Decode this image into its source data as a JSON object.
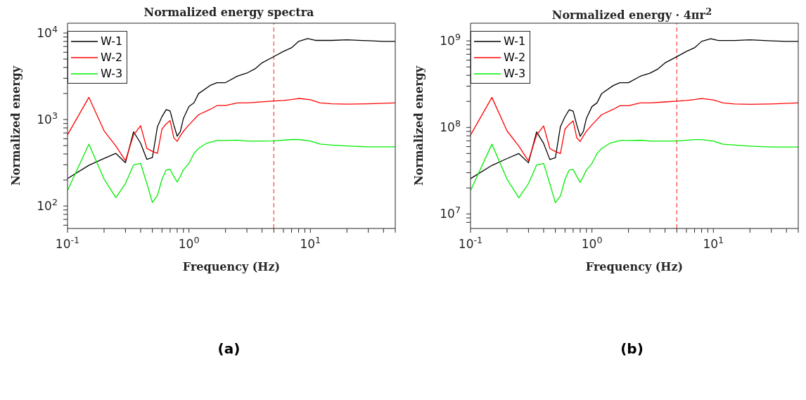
{
  "chart_data": [
    {
      "type": "line",
      "title": "Normalized energy spectra",
      "xlabel": "Frequency (Hz)",
      "ylabel": "Normalized energy",
      "log": "xy",
      "grid": false,
      "legend": "top left",
      "marker": "none",
      "line_style": "solid",
      "xlim": [
        0.1,
        50
      ],
      "ylim": [
        55,
        13000
      ],
      "xticks": [
        {
          "value": 0.1,
          "label": "10$^{-1}$"
        },
        {
          "value": 0.2,
          "label": null
        },
        {
          "value": 0.3,
          "label": null
        },
        {
          "value": 0.4,
          "label": null
        },
        {
          "value": 0.5,
          "label": null
        },
        {
          "value": 0.6,
          "label": null
        },
        {
          "value": 0.7,
          "label": null
        },
        {
          "value": 0.8,
          "label": null
        },
        {
          "value": 0.9,
          "label": null
        },
        {
          "value": 1,
          "label": "10$^{0}$"
        },
        {
          "value": 2,
          "label": null
        },
        {
          "value": 3,
          "label": null
        },
        {
          "value": 4,
          "label": null
        },
        {
          "value": 5,
          "label": null
        },
        {
          "value": 6,
          "label": null
        },
        {
          "value": 7,
          "label": null
        },
        {
          "value": 8,
          "label": null
        },
        {
          "value": 9,
          "label": null
        },
        {
          "value": 10,
          "label": "10$^{1}$"
        },
        {
          "value": 20,
          "label": null
        },
        {
          "value": 30,
          "label": null
        },
        {
          "value": 40,
          "label": null
        },
        {
          "value": 50,
          "label": null
        }
      ],
      "yticks": [
        {
          "value": 60,
          "label": null
        },
        {
          "value": 70,
          "label": null
        },
        {
          "value": 80,
          "label": null
        },
        {
          "value": 90,
          "label": null
        },
        {
          "value": 100,
          "label": "10$^{2}$"
        },
        {
          "value": 200,
          "label": null
        },
        {
          "value": 300,
          "label": null
        },
        {
          "value": 400,
          "label": null
        },
        {
          "value": 500,
          "label": null
        },
        {
          "value": 600,
          "label": null
        },
        {
          "value": 700,
          "label": null
        },
        {
          "value": 800,
          "label": null
        },
        {
          "value": 900,
          "label": null
        },
        {
          "value": 1000,
          "label": "10$^{3}$"
        },
        {
          "value": 2000,
          "label": null
        },
        {
          "value": 3000,
          "label": null
        },
        {
          "value": 4000,
          "label": null
        },
        {
          "value": 5000,
          "label": null
        },
        {
          "value": 6000,
          "label": null
        },
        {
          "value": 7000,
          "label": null
        },
        {
          "value": 8000,
          "label": null
        },
        {
          "value": 9000,
          "label": null
        },
        {
          "value": 10000,
          "label": "10$^{4}$"
        }
      ],
      "ref_lines": [
        {
          "axis": "x",
          "value": 5,
          "color": "#ff4040",
          "line_style": "dashed"
        }
      ],
      "annotations": [
        "(a)"
      ],
      "series": [
        {
          "name": "W-1",
          "color": "#000000",
          "x": [
            0.1,
            0.15,
            0.2,
            0.25,
            0.3,
            0.35,
            0.4,
            0.45,
            0.5,
            0.55,
            0.6,
            0.65,
            0.7,
            0.75,
            0.8,
            0.85,
            0.9,
            1,
            1.1,
            1.2,
            1.5,
            1.7,
            2,
            2.5,
            3,
            3.5,
            4,
            5,
            6,
            7,
            8,
            9.5,
            11,
            15,
            20,
            30,
            40,
            50
          ],
          "values": [
            208,
            296,
            355,
            406,
            317,
            721,
            532,
            346,
            363,
            826,
            1082,
            1303,
            1254,
            867,
            641,
            731,
            1030,
            1416,
            1560,
            1995,
            2483,
            2672,
            2672,
            3170,
            3443,
            3855,
            4530,
            5345,
            6135,
            6764,
            8020,
            8630,
            8220,
            8220,
            8340,
            8150,
            8020,
            8020
          ]
        },
        {
          "name": "W-2",
          "color": "#ff0000",
          "x": [
            0.1,
            0.15,
            0.2,
            0.25,
            0.3,
            0.35,
            0.4,
            0.45,
            0.5,
            0.55,
            0.6,
            0.65,
            0.7,
            0.75,
            0.8,
            0.85,
            0.9,
            1,
            1.2,
            1.5,
            1.7,
            2,
            2.5,
            3,
            4,
            5,
            6,
            7,
            8,
            10,
            12,
            15,
            20,
            30,
            50
          ],
          "values": [
            664,
            1807,
            741,
            495,
            334,
            664,
            848,
            464,
            428,
            406,
            780,
            890,
            971,
            616,
            559,
            648,
            731,
            867,
            1135,
            1314,
            1449,
            1449,
            1560,
            1560,
            1600,
            1638,
            1663,
            1704,
            1754,
            1693,
            1560,
            1523,
            1506,
            1523,
            1560
          ]
        },
        {
          "name": "W-3",
          "color": "#00ee00",
          "x": [
            0.1,
            0.15,
            0.2,
            0.25,
            0.3,
            0.35,
            0.4,
            0.45,
            0.5,
            0.55,
            0.6,
            0.65,
            0.7,
            0.75,
            0.8,
            0.85,
            0.9,
            1,
            1.1,
            1.2,
            1.4,
            1.7,
            2,
            2.5,
            3,
            4,
            5,
            7,
            8,
            10,
            12,
            15,
            20,
            30,
            50
          ],
          "values": [
            151,
            520,
            205,
            125,
            182,
            299,
            311,
            182,
            110,
            132,
            205,
            262,
            265,
            221,
            189,
            221,
            262,
            311,
            406,
            464,
            532,
            573,
            573,
            578,
            565,
            565,
            567,
            587,
            587,
            565,
            520,
            507,
            495,
            483,
            483
          ]
        }
      ]
    },
    {
      "type": "line",
      "title": "Normalized energy · 4πr$^{2}$",
      "xlabel": "Frequency (Hz)",
      "ylabel": "Normalized energy",
      "log": "xy",
      "grid": false,
      "legend": "top left",
      "marker": "none",
      "line_style": "solid",
      "xlim": [
        0.1,
        50
      ],
      "ylim": [
        6800000,
        1600000000
      ],
      "xticks": [
        {
          "value": 0.1,
          "label": "10$^{-1}$"
        },
        {
          "value": 0.2,
          "label": null
        },
        {
          "value": 0.3,
          "label": null
        },
        {
          "value": 0.4,
          "label": null
        },
        {
          "value": 0.5,
          "label": null
        },
        {
          "value": 0.6,
          "label": null
        },
        {
          "value": 0.7,
          "label": null
        },
        {
          "value": 0.8,
          "label": null
        },
        {
          "value": 0.9,
          "label": null
        },
        {
          "value": 1,
          "label": "10$^{0}$"
        },
        {
          "value": 2,
          "label": null
        },
        {
          "value": 3,
          "label": null
        },
        {
          "value": 4,
          "label": null
        },
        {
          "value": 5,
          "label": null
        },
        {
          "value": 6,
          "label": null
        },
        {
          "value": 7,
          "label": null
        },
        {
          "value": 8,
          "label": null
        },
        {
          "value": 9,
          "label": null
        },
        {
          "value": 10,
          "label": "10$^{1}$"
        },
        {
          "value": 20,
          "label": null
        },
        {
          "value": 30,
          "label": null
        },
        {
          "value": 40,
          "label": null
        },
        {
          "value": 50,
          "label": null
        }
      ],
      "yticks": [
        {
          "value": 8000000,
          "label": null
        },
        {
          "value": 9000000,
          "label": null
        },
        {
          "value": 10000000,
          "label": "10$^{7}$"
        },
        {
          "value": 20000000,
          "label": null
        },
        {
          "value": 30000000,
          "label": null
        },
        {
          "value": 40000000,
          "label": null
        },
        {
          "value": 50000000,
          "label": null
        },
        {
          "value": 60000000,
          "label": null
        },
        {
          "value": 70000000,
          "label": null
        },
        {
          "value": 80000000,
          "label": null
        },
        {
          "value": 90000000,
          "label": null
        },
        {
          "value": 100000000,
          "label": "10$^{8}$"
        },
        {
          "value": 200000000,
          "label": null
        },
        {
          "value": 300000000,
          "label": null
        },
        {
          "value": 400000000,
          "label": null
        },
        {
          "value": 500000000,
          "label": null
        },
        {
          "value": 600000000,
          "label": null
        },
        {
          "value": 700000000,
          "label": null
        },
        {
          "value": 800000000,
          "label": null
        },
        {
          "value": 900000000,
          "label": null
        },
        {
          "value": 1000000000,
          "label": "10$^{9}$"
        }
      ],
      "ref_lines": [
        {
          "axis": "x",
          "value": 5,
          "color": "#ff4040",
          "line_style": "dashed"
        }
      ],
      "annotations": [
        "(b)"
      ],
      "series": [
        {
          "name": "W-1",
          "color": "#000000",
          "x": [
            0.1,
            0.15,
            0.2,
            0.25,
            0.3,
            0.35,
            0.4,
            0.45,
            0.5,
            0.55,
            0.6,
            0.65,
            0.7,
            0.75,
            0.8,
            0.85,
            0.9,
            1,
            1.1,
            1.2,
            1.5,
            1.7,
            2,
            2.5,
            3,
            3.5,
            4,
            5,
            6,
            7,
            8,
            9.5,
            11,
            15,
            20,
            30,
            40,
            50
          ],
          "values": [
            25600000.0,
            36400000.0,
            43700000.0,
            49900000.0,
            39000000.0,
            88700000.0,
            65400000.0,
            42600000.0,
            44600000.0,
            102000000.0,
            133000000.0,
            160000000.0,
            154000000.0,
            107000000.0,
            78800000.0,
            89900000.0,
            127000000.0,
            174000000.0,
            192000000.0,
            245000000.0,
            305000000.0,
            329000000.0,
            329000000.0,
            390000000.0,
            423000000.0,
            474000000.0,
            557000000.0,
            657000000.0,
            755000000.0,
            832000000.0,
            986000000.0,
            1060000000.0,
            1010000000.0,
            1010000000.0,
            1030000000.0,
            1000000000.0,
            986000000.0,
            986000000.0
          ]
        },
        {
          "name": "W-2",
          "color": "#ff0000",
          "x": [
            0.1,
            0.15,
            0.2,
            0.25,
            0.3,
            0.35,
            0.4,
            0.45,
            0.5,
            0.55,
            0.6,
            0.65,
            0.7,
            0.75,
            0.8,
            0.85,
            0.9,
            1,
            1.2,
            1.5,
            1.7,
            2,
            2.5,
            3,
            4,
            5,
            6,
            7,
            8,
            10,
            12,
            15,
            20,
            30,
            50
          ],
          "values": [
            81700000.0,
            222000000.0,
            91100000.0,
            60900000.0,
            41100000.0,
            81700000.0,
            104000000.0,
            57100000.0,
            52600000.0,
            49900000.0,
            95900000.0,
            109000000.0,
            119000000.0,
            75800000.0,
            68800000.0,
            79700000.0,
            89900000.0,
            107000000.0,
            140000000.0,
            162000000.0,
            178000000.0,
            178000000.0,
            192000000.0,
            192000000.0,
            197000000.0,
            201000000.0,
            205000000.0,
            210000000.0,
            216000000.0,
            208000000.0,
            192000000.0,
            187000000.0,
            185000000.0,
            187000000.0,
            192000000.0
          ]
        },
        {
          "name": "W-3",
          "color": "#00ee00",
          "x": [
            0.1,
            0.15,
            0.2,
            0.25,
            0.3,
            0.35,
            0.4,
            0.45,
            0.5,
            0.55,
            0.6,
            0.65,
            0.7,
            0.75,
            0.8,
            0.85,
            0.9,
            1,
            1.1,
            1.2,
            1.4,
            1.7,
            2,
            2.5,
            3,
            4,
            5,
            7,
            8,
            10,
            12,
            15,
            20,
            30,
            50
          ],
          "values": [
            18600000.0,
            64000000.0,
            25200000.0,
            15400000.0,
            22400000.0,
            36800000.0,
            38300000.0,
            22400000.0,
            13500000.0,
            16200000.0,
            25200000.0,
            32200000.0,
            32600000.0,
            27200000.0,
            23200000.0,
            27200000.0,
            32200000.0,
            38300000.0,
            49900000.0,
            57100000.0,
            65400000.0,
            70500000.0,
            70500000.0,
            71100000.0,
            69500000.0,
            69500000.0,
            69700000.0,
            72200000.0,
            72200000.0,
            69500000.0,
            64000000.0,
            62400000.0,
            60900000.0,
            59400000.0,
            59400000.0
          ]
        }
      ]
    }
  ]
}
